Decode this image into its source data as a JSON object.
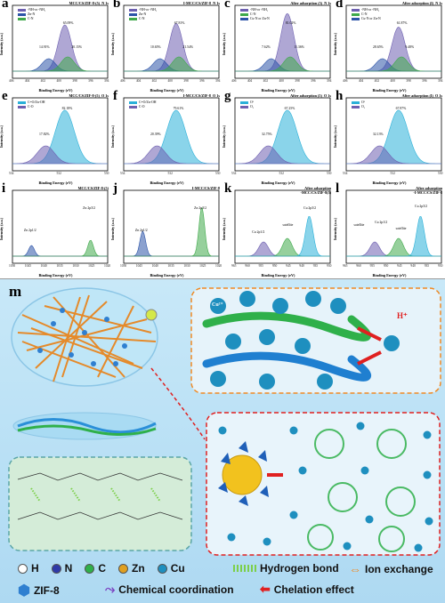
{
  "panels": [
    {
      "id": "a",
      "title": "MCC/CS/ZIF-8-(5)  N 1s",
      "legend": [
        "-NH-or -NH₂",
        "Zn-N",
        "C-N"
      ],
      "legend_colors": [
        "#6d5fb0",
        "#2c54a8",
        "#3fa94a"
      ],
      "peaks": [
        "65.09%",
        "14.91%",
        "20.15%"
      ],
      "xticks": [
        "406",
        "404",
        "402",
        "400",
        "398",
        "396",
        "394"
      ],
      "xlabel": "Binding Energy (eV)",
      "ylabel": "Intensity (a.u.)"
    },
    {
      "id": "b",
      "title": "I-MCC/CS/ZIF-8  N 1s",
      "legend": [
        "-NH-or -NH₂",
        "Zn-N",
        "C-N"
      ],
      "legend_colors": [
        "#6d5fb0",
        "#2c54a8",
        "#3fa94a"
      ],
      "peaks": [
        "67.81%",
        "10.65%",
        "21.54%"
      ],
      "xticks": [
        "406",
        "404",
        "402",
        "400",
        "398",
        "396",
        "394"
      ],
      "xlabel": "Binding Energy (eV)",
      "ylabel": "Intensity (a.u.)"
    },
    {
      "id": "c",
      "title": "After adsorption (5)  N 1s",
      "legend": [
        "-NH-or -NH₂",
        "C-N",
        "Cu-N or Zn-N"
      ],
      "legend_colors": [
        "#6d5fb0",
        "#3fa94a",
        "#2c54a8"
      ],
      "peaks": [
        "81.02%",
        "7.62%",
        "11.36%"
      ],
      "xticks": [
        "406",
        "404",
        "402",
        "400",
        "398",
        "396",
        "394"
      ],
      "xlabel": "Binding Energy (eV)",
      "ylabel": "Intensity (a.u.)"
    },
    {
      "id": "d",
      "title": "After adsorption (I)  N 1s",
      "legend": [
        "-NH-or -NH₂",
        "C-N",
        "Cu-N or Zn-N"
      ],
      "legend_colors": [
        "#6d5fb0",
        "#3fa94a",
        "#2c54a8"
      ],
      "peaks": [
        "61.87%",
        "28.65%",
        "9.48%"
      ],
      "xticks": [
        "406",
        "404",
        "402",
        "400",
        "398",
        "396",
        "394"
      ],
      "xlabel": "Binding Energy (eV)",
      "ylabel": "Intensity (a.u.)"
    },
    {
      "id": "e",
      "title": "MCC/CS/ZIF-8-(5)  O 1s",
      "legend": [
        "C=O/Zn-OH",
        "C-O"
      ],
      "legend_colors": [
        "#2ab0d8",
        "#6d5fb0"
      ],
      "peaks": [
        "82.18%",
        "17.82%"
      ],
      "xticks": [
        "534",
        "532",
        "530"
      ],
      "xlabel": "Binding Energy (eV)",
      "ylabel": "Intensity (a.u.)"
    },
    {
      "id": "f",
      "title": "I-MCC/CS/ZIF-8  O 1s",
      "legend": [
        "C=O/Zn-OH",
        "C-O"
      ],
      "legend_colors": [
        "#2ab0d8",
        "#6d5fb0"
      ],
      "peaks": [
        "79.61%",
        "20.39%"
      ],
      "xticks": [
        "534",
        "532",
        "530"
      ],
      "xlabel": "Binding Energy (eV)",
      "ylabel": "Intensity (a.u.)"
    },
    {
      "id": "g",
      "title": "After adsorption (5)  O 1s",
      "legend": [
        "O¹",
        "O₂"
      ],
      "legend_colors": [
        "#2ab0d8",
        "#6d5fb0"
      ],
      "peaks": [
        "67.25%",
        "32.75%"
      ],
      "xticks": [
        "534",
        "532",
        "530"
      ],
      "xlabel": "Binding Energy (eV)",
      "ylabel": "Intensity (a.u.)"
    },
    {
      "id": "h",
      "title": "After adsorption (I)  O 1s",
      "legend": [
        "O¹",
        "O₂"
      ],
      "legend_colors": [
        "#2ab0d8",
        "#6d5fb0"
      ],
      "peaks": [
        "67.87%",
        "32.13%"
      ],
      "xticks": [
        "534",
        "532",
        "530"
      ],
      "xlabel": "Binding Energy (eV)",
      "ylabel": "Intensity (a.u.)"
    },
    {
      "id": "i",
      "title": "MCC/CS/ZIF-8-(5)",
      "legend": [],
      "legend_colors": [],
      "peaks": [
        "Zn 2p1/2",
        "Zn 2p3/2"
      ],
      "xticks": [
        "1050",
        "1045",
        "1040",
        "1035",
        "1030",
        "1025",
        "1020"
      ],
      "xlabel": "Binding Energy (eV)",
      "ylabel": "Intensity (a.u.)"
    },
    {
      "id": "j",
      "title": "I-MCC/CS/ZIF-8",
      "legend": [],
      "legend_colors": [],
      "peaks": [
        "Zn 2p1/2",
        "Zn 2p3/2"
      ],
      "xticks": [
        "1050",
        "1045",
        "1040",
        "1035",
        "1030",
        "1025",
        "1020"
      ],
      "xlabel": "Binding Energy (eV)",
      "ylabel": "Intensity (a.u.)"
    },
    {
      "id": "k",
      "title": "After adsorption\n-MCC/CS/ZIF-8(5)",
      "legend": [],
      "legend_colors": [],
      "peaks": [
        "Cu 2p1/2",
        "satellite",
        "Cu 2p3/2"
      ],
      "xticks": [
        "965",
        "960",
        "955",
        "950",
        "945",
        "940",
        "935",
        "930"
      ],
      "xlabel": "Binding Energy (eV)",
      "ylabel": "Intensity (a.u.)"
    },
    {
      "id": "l",
      "title": "After adsorption\n-I-MCC/CS/ZIF-8",
      "legend": [],
      "legend_colors": [],
      "peaks": [
        "satellite",
        "Cu 2p1/2",
        "satellite",
        "Cu 2p3/2"
      ],
      "xticks": [
        "965",
        "960",
        "955",
        "950",
        "945",
        "940",
        "935",
        "930"
      ],
      "xlabel": "Binding Energy (eV)",
      "ylabel": "Intensity (a.u.)"
    }
  ],
  "scheme": {
    "label": "m",
    "ion_labels": [
      "Cu²⁺",
      "H⁺"
    ],
    "key": {
      "atoms": [
        {
          "sym": "H",
          "color": "#ffffff"
        },
        {
          "sym": "N",
          "color": "#2f3aa8"
        },
        {
          "sym": "C",
          "color": "#2fb04a"
        },
        {
          "sym": "Zn",
          "color": "#e0a020"
        },
        {
          "sym": "Cu",
          "color": "#1e8fbf"
        }
      ],
      "hbond": "Hydrogen bond",
      "ion_exchange": "Ion exchange",
      "zif": "ZIF-8",
      "chem_coord": "Chemical coordination",
      "chelation": "Chelation effect"
    }
  }
}
